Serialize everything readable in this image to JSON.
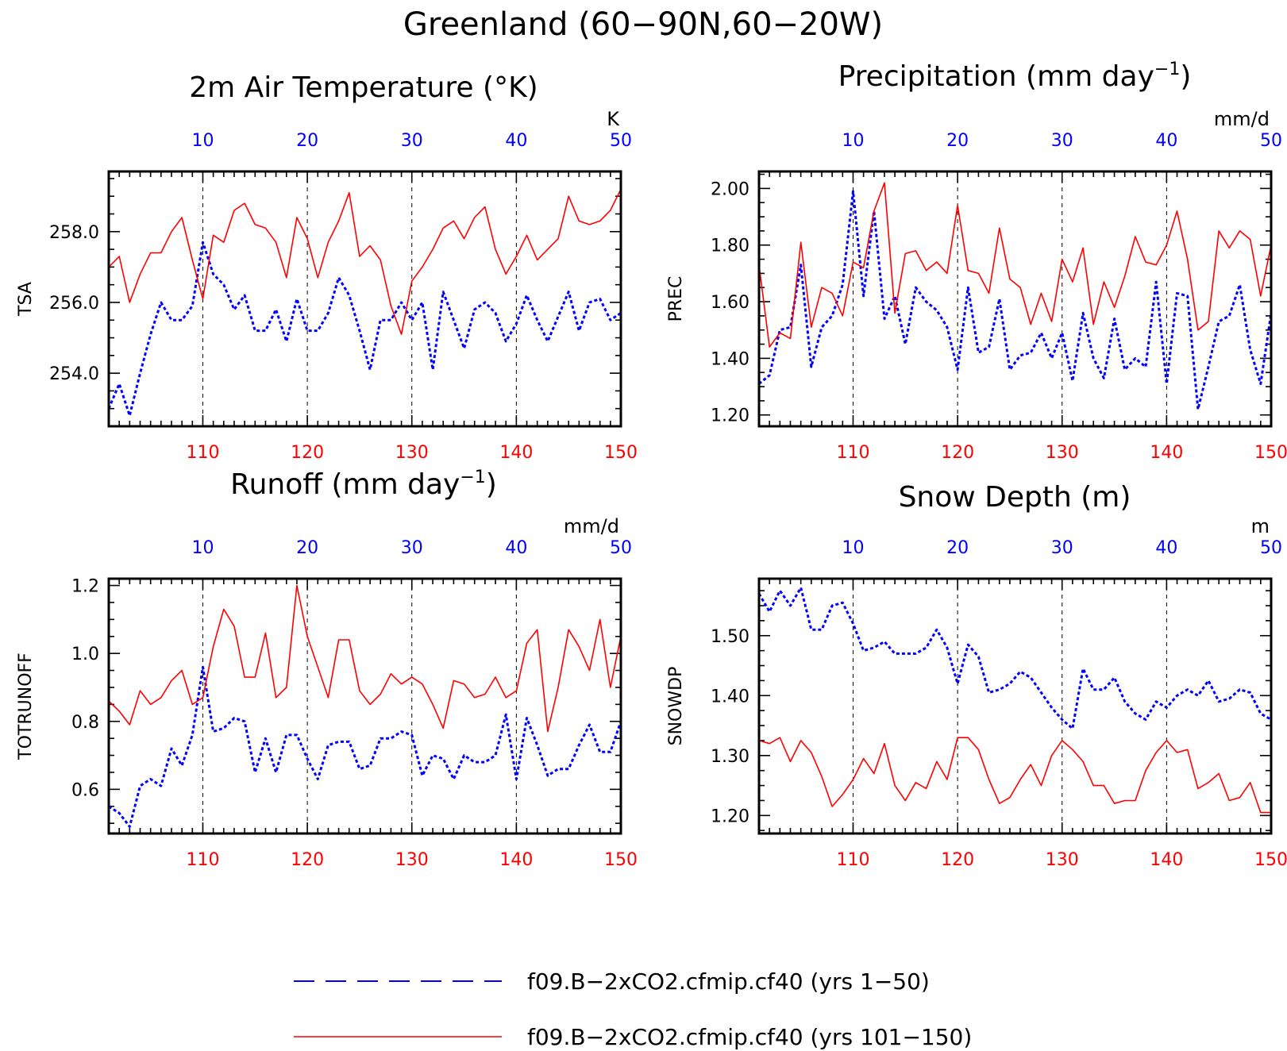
{
  "figure": {
    "title": "Greenland (60−90N,60−20W)"
  },
  "colors": {
    "series_a": "#0000ff",
    "series_b": "#ff0000",
    "axis": "#000000"
  },
  "legend": {
    "placement": "bottom-center",
    "entries": [
      {
        "label": "f09.B−2xCO2.cfmip.cf40 (yrs 1−50)",
        "color": "#0000ff",
        "style": "dashed"
      },
      {
        "label": "f09.B−2xCO2.cfmip.cf40 (yrs 101−150)",
        "color": "#ff0000",
        "style": "solid"
      }
    ]
  },
  "chart_data": [
    {
      "type": "line",
      "title": "2m Air Temperature (°K)",
      "ylabel": "TSA",
      "unit": "K",
      "ylim": [
        252.5,
        259.7
      ],
      "yticks": [
        254.0,
        256.0,
        258.0
      ],
      "ytick_labels": [
        "254.0",
        "256.0",
        "258.0"
      ],
      "yminor": 0.5,
      "bottom_axis": {
        "range": [
          101,
          150
        ],
        "ticks": [
          110,
          120,
          130,
          140,
          150
        ]
      },
      "top_axis": {
        "range": [
          1,
          50
        ],
        "ticks": [
          10,
          20,
          30,
          40,
          50
        ]
      },
      "grid": "vertical dashed at major ticks",
      "series": [
        {
          "name": "f09.B−2xCO2.cfmip.cf40 (yrs 1−50)",
          "axis": "top",
          "color": "#0000ff",
          "style": "dashed",
          "values": [
            253.0,
            253.7,
            252.8,
            254.0,
            255.1,
            256.0,
            255.5,
            255.5,
            255.9,
            257.7,
            256.8,
            256.5,
            255.8,
            256.2,
            255.2,
            255.2,
            255.8,
            254.9,
            256.1,
            255.2,
            255.2,
            255.7,
            256.7,
            256.2,
            255.2,
            254.1,
            255.5,
            255.5,
            256.0,
            255.5,
            256.0,
            254.1,
            256.3,
            255.5,
            254.7,
            255.8,
            256.0,
            255.7,
            254.9,
            255.4,
            256.2,
            255.5,
            254.9,
            255.6,
            256.3,
            255.2,
            256.0,
            256.1,
            255.5,
            255.7
          ]
        },
        {
          "name": "f09.B−2xCO2.cfmip.cf40 (yrs 101−150)",
          "axis": "bottom",
          "color": "#ff0000",
          "style": "solid",
          "values": [
            257.0,
            257.3,
            256.0,
            256.8,
            257.4,
            257.4,
            258.0,
            258.4,
            257.2,
            256.1,
            257.9,
            257.7,
            258.6,
            258.8,
            258.2,
            258.1,
            257.7,
            256.7,
            258.4,
            257.8,
            256.7,
            257.7,
            258.3,
            259.1,
            257.3,
            257.6,
            257.2,
            255.9,
            255.1,
            256.6,
            257.0,
            257.5,
            258.1,
            258.3,
            257.8,
            258.4,
            258.7,
            257.5,
            256.8,
            257.3,
            257.9,
            257.2,
            257.5,
            257.8,
            259.0,
            258.3,
            258.2,
            258.3,
            258.6,
            259.2
          ]
        }
      ]
    },
    {
      "type": "line",
      "title": "Precipitation (mm day",
      "title_sup": "−1",
      "title_end": ")",
      "ylabel": "PREC",
      "unit": "mm/d",
      "ylim": [
        1.16,
        2.06
      ],
      "yticks": [
        1.2,
        1.4,
        1.6,
        1.8,
        2.0
      ],
      "ytick_labels": [
        "1.20",
        "1.40",
        "1.60",
        "1.80",
        "2.00"
      ],
      "yminor": 0.05,
      "bottom_axis": {
        "range": [
          101,
          150
        ],
        "ticks": [
          110,
          120,
          130,
          140,
          150
        ]
      },
      "top_axis": {
        "range": [
          1,
          50
        ],
        "ticks": [
          10,
          20,
          30,
          40,
          50
        ]
      },
      "grid": "vertical dashed at major ticks",
      "series": [
        {
          "name": "f09.B−2xCO2.cfmip.cf40 (yrs 1−50)",
          "axis": "top",
          "color": "#0000ff",
          "style": "dashed",
          "values": [
            1.31,
            1.34,
            1.5,
            1.51,
            1.73,
            1.37,
            1.51,
            1.55,
            1.66,
            1.99,
            1.62,
            1.92,
            1.54,
            1.62,
            1.45,
            1.65,
            1.6,
            1.57,
            1.51,
            1.36,
            1.65,
            1.42,
            1.44,
            1.61,
            1.36,
            1.41,
            1.42,
            1.49,
            1.4,
            1.49,
            1.32,
            1.56,
            1.4,
            1.33,
            1.54,
            1.36,
            1.4,
            1.37,
            1.67,
            1.31,
            1.63,
            1.62,
            1.22,
            1.37,
            1.53,
            1.55,
            1.66,
            1.43,
            1.31,
            1.56
          ]
        },
        {
          "name": "f09.B−2xCO2.cfmip.cf40 (yrs 101−150)",
          "axis": "bottom",
          "color": "#ff0000",
          "style": "solid",
          "values": [
            1.73,
            1.44,
            1.49,
            1.47,
            1.81,
            1.51,
            1.65,
            1.63,
            1.55,
            1.74,
            1.72,
            1.92,
            2.02,
            1.56,
            1.77,
            1.78,
            1.71,
            1.74,
            1.7,
            1.94,
            1.71,
            1.7,
            1.63,
            1.86,
            1.68,
            1.65,
            1.52,
            1.63,
            1.53,
            1.75,
            1.67,
            1.79,
            1.52,
            1.67,
            1.58,
            1.69,
            1.83,
            1.74,
            1.73,
            1.8,
            1.92,
            1.75,
            1.5,
            1.53,
            1.85,
            1.79,
            1.85,
            1.82,
            1.62,
            1.8
          ]
        }
      ]
    },
    {
      "type": "line",
      "title": "Runoff (mm day",
      "title_sup": "−1",
      "title_end": ")",
      "ylabel": "TOTRUNOFF",
      "unit": "mm/d",
      "ylim": [
        0.47,
        1.22
      ],
      "yticks": [
        0.6,
        0.8,
        1.0,
        1.2
      ],
      "ytick_labels": [
        "0.6",
        "0.8",
        "1.0",
        "1.2"
      ],
      "yminor": 0.05,
      "bottom_axis": {
        "range": [
          101,
          150
        ],
        "ticks": [
          110,
          120,
          130,
          140,
          150
        ]
      },
      "top_axis": {
        "range": [
          1,
          50
        ],
        "ticks": [
          10,
          20,
          30,
          40,
          50
        ]
      },
      "grid": "vertical dashed at major ticks",
      "series": [
        {
          "name": "f09.B−2xCO2.cfmip.cf40 (yrs 1−50)",
          "axis": "top",
          "color": "#0000ff",
          "style": "dashed",
          "values": [
            0.55,
            0.53,
            0.49,
            0.61,
            0.63,
            0.61,
            0.72,
            0.67,
            0.76,
            0.96,
            0.77,
            0.78,
            0.81,
            0.8,
            0.65,
            0.75,
            0.65,
            0.76,
            0.76,
            0.69,
            0.63,
            0.73,
            0.74,
            0.74,
            0.66,
            0.67,
            0.75,
            0.75,
            0.77,
            0.76,
            0.64,
            0.7,
            0.69,
            0.63,
            0.7,
            0.68,
            0.68,
            0.7,
            0.82,
            0.63,
            0.81,
            0.73,
            0.64,
            0.66,
            0.66,
            0.73,
            0.79,
            0.71,
            0.71,
            0.8
          ]
        },
        {
          "name": "f09.B−2xCO2.cfmip.cf40 (yrs 101−150)",
          "axis": "bottom",
          "color": "#ff0000",
          "style": "solid",
          "values": [
            0.86,
            0.83,
            0.79,
            0.89,
            0.85,
            0.87,
            0.92,
            0.95,
            0.85,
            0.87,
            1.02,
            1.13,
            1.08,
            0.93,
            0.93,
            1.06,
            0.87,
            0.9,
            1.2,
            1.05,
            0.96,
            0.87,
            1.04,
            1.04,
            0.89,
            0.85,
            0.88,
            0.94,
            0.91,
            0.93,
            0.91,
            0.85,
            0.78,
            0.92,
            0.91,
            0.87,
            0.88,
            0.93,
            0.87,
            0.89,
            1.03,
            1.07,
            0.77,
            0.9,
            1.07,
            1.02,
            0.95,
            1.1,
            0.9,
            1.05
          ]
        }
      ]
    },
    {
      "type": "line",
      "title": "Snow Depth (m)",
      "ylabel": "SNOWDP",
      "unit": "m",
      "ylim": [
        1.17,
        1.595
      ],
      "yticks": [
        1.2,
        1.3,
        1.4,
        1.5
      ],
      "ytick_labels": [
        "1.20",
        "1.30",
        "1.40",
        "1.50"
      ],
      "yminor": 0.025,
      "bottom_axis": {
        "range": [
          101,
          150
        ],
        "ticks": [
          110,
          120,
          130,
          140,
          150
        ]
      },
      "top_axis": {
        "range": [
          1,
          50
        ],
        "ticks": [
          10,
          20,
          30,
          40,
          50
        ]
      },
      "grid": "vertical dashed at major ticks",
      "series": [
        {
          "name": "f09.B−2xCO2.cfmip.cf40 (yrs 1−50)",
          "axis": "top",
          "color": "#0000ff",
          "style": "dashed",
          "values": [
            1.57,
            1.54,
            1.575,
            1.55,
            1.58,
            1.51,
            1.51,
            1.55,
            1.555,
            1.52,
            1.475,
            1.48,
            1.49,
            1.47,
            1.47,
            1.47,
            1.48,
            1.51,
            1.48,
            1.42,
            1.485,
            1.465,
            1.405,
            1.41,
            1.42,
            1.44,
            1.43,
            1.405,
            1.38,
            1.36,
            1.345,
            1.445,
            1.41,
            1.41,
            1.43,
            1.39,
            1.37,
            1.36,
            1.39,
            1.38,
            1.4,
            1.41,
            1.4,
            1.425,
            1.39,
            1.395,
            1.41,
            1.405,
            1.37,
            1.36
          ]
        },
        {
          "name": "f09.B−2xCO2.cfmip.cf40 (yrs 101−150)",
          "axis": "bottom",
          "color": "#ff0000",
          "style": "solid",
          "values": [
            1.325,
            1.32,
            1.33,
            1.29,
            1.325,
            1.305,
            1.265,
            1.215,
            1.235,
            1.26,
            1.295,
            1.27,
            1.32,
            1.25,
            1.225,
            1.255,
            1.245,
            1.29,
            1.26,
            1.33,
            1.33,
            1.31,
            1.26,
            1.22,
            1.23,
            1.26,
            1.285,
            1.25,
            1.3,
            1.325,
            1.31,
            1.29,
            1.25,
            1.25,
            1.22,
            1.225,
            1.225,
            1.275,
            1.305,
            1.325,
            1.305,
            1.31,
            1.245,
            1.255,
            1.27,
            1.225,
            1.23,
            1.255,
            1.205,
            1.205
          ]
        }
      ]
    }
  ]
}
